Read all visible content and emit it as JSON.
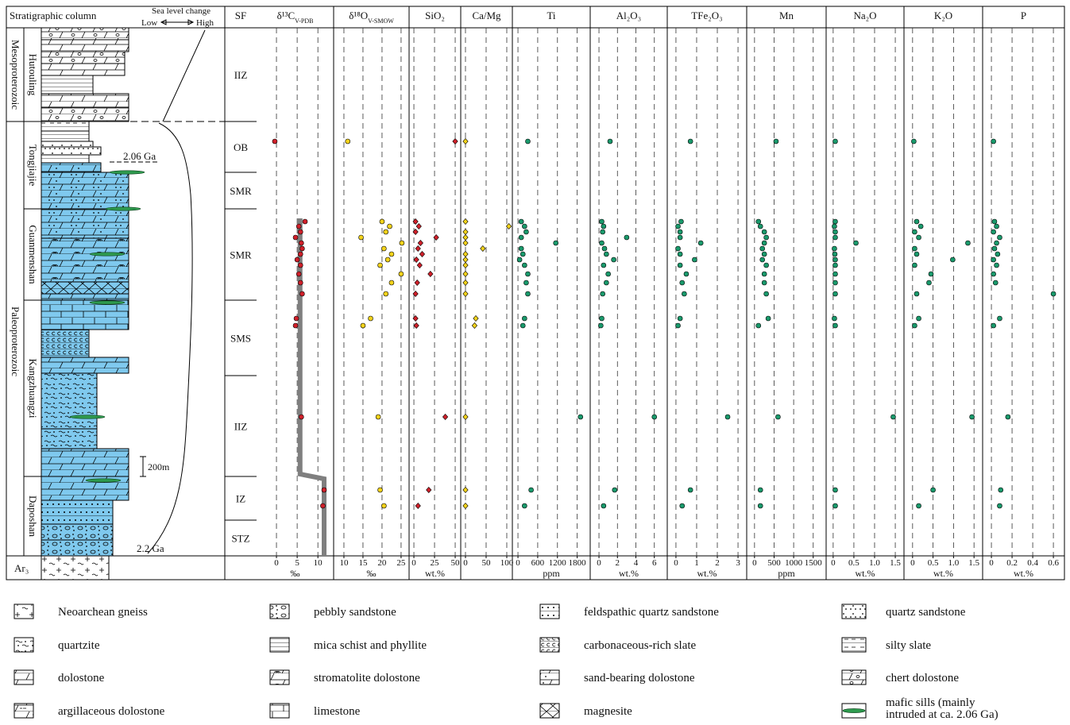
{
  "column": {
    "header": "Stratigraphic column",
    "sea_level": "Sea level change",
    "low": "Low",
    "high": "High",
    "eras": [
      "Mesoproterozoic",
      "Paleoproterozoic"
    ],
    "formations": [
      "Hutouling",
      "Tongjiajie",
      "Guanmenshan",
      "Kangzhuangzi",
      "Daposhan"
    ],
    "ages": [
      "2.06 Ga",
      "2.2 Ga"
    ],
    "scale": "200m",
    "basement": "Ar₃"
  },
  "sf": {
    "header": "SF",
    "units": [
      "IIZ",
      "OB",
      "SMR",
      "SMR",
      "SMS",
      "IIZ",
      "IZ",
      "STZ"
    ]
  },
  "chart_data": [
    {
      "type": "scatter",
      "title": "δ¹³C",
      "title_sub": "V-PDB",
      "x_label": "‰",
      "xlim": [
        -4.8,
        13.8
      ],
      "xticks": [
        0,
        5,
        10
      ],
      "ylim": [
        0,
        5320
      ],
      "y": [
        4176,
        3368,
        3320,
        3264,
        3208,
        3152,
        3096,
        3040,
        2984,
        2928,
        2840,
        2752,
        2640,
        2392,
        2320,
        1400,
        664,
        504
      ],
      "series": [
        {
          "color": "#d0202a",
          "marker": "circle",
          "values": [
            -0.4,
            6.9,
            5.4,
            5.8,
            4.6,
            6,
            6.2,
            5.8,
            5,
            5.8,
            5.4,
            5.8,
            6.2,
            4.8,
            4.6,
            6,
            11.5,
            11.2
          ]
        }
      ],
      "trend": {
        "color": "#7f7f7f",
        "values": [
          5.7,
          5.7,
          11.5,
          11.5
        ],
        "y": [
          3400,
          824,
          776,
          0
        ]
      }
    },
    {
      "type": "scatter",
      "title": "δ¹⁸O",
      "title_sub": "V-SMOW",
      "x_label": "‰",
      "xlim": [
        7.3,
        27.1
      ],
      "xticks": [
        10,
        15,
        20,
        25
      ],
      "ylim": [
        0,
        5320
      ],
      "y": [
        4176,
        3368,
        3320,
        3264,
        3208,
        3152,
        3096,
        3040,
        2984,
        2928,
        2840,
        2752,
        2640,
        2392,
        2320,
        1400,
        664,
        504
      ],
      "series": [
        {
          "color": "#f2d21b",
          "marker": "circle",
          "values": [
            11,
            20,
            22,
            21,
            14.5,
            25.2,
            20.5,
            22.5,
            21.5,
            19.5,
            25,
            22.5,
            21,
            17,
            15,
            19,
            19.5,
            20.5
          ]
        }
      ]
    },
    {
      "type": "scatter",
      "title": "SiO₂",
      "x_label": "wt.%",
      "xlim": [
        -5.8,
        56.7
      ],
      "xticks": [
        0,
        25,
        50
      ],
      "ylim": [
        0,
        5320
      ],
      "y": [
        4176,
        3368,
        3320,
        3264,
        3208,
        3152,
        3096,
        3040,
        2984,
        2928,
        2840,
        2752,
        2640,
        2392,
        2320,
        1400,
        664,
        504
      ],
      "series": [
        {
          "color": "#d0202a",
          "marker": "diamond",
          "values": [
            50,
            2,
            6,
            2,
            27,
            8,
            5,
            10,
            3,
            7,
            20,
            4,
            2,
            2,
            3,
            38,
            18,
            5
          ]
        }
      ]
    },
    {
      "type": "scatter",
      "title": "Ca/Mg",
      "xlim": [
        -11.5,
        113.5
      ],
      "xticks": [
        0,
        50,
        100
      ],
      "ylim": [
        0,
        5320
      ],
      "y": [
        4176,
        3368,
        3320,
        3264,
        3208,
        3152,
        3096,
        3040,
        2984,
        2928,
        2840,
        2752,
        2640,
        2392,
        2320,
        1400,
        664,
        504
      ],
      "series": [
        {
          "color": "#f2d21b",
          "marker": "diamond",
          "values": [
            0,
            0,
            105,
            0,
            0,
            0,
            42,
            0,
            0,
            0,
            0,
            0,
            0,
            25,
            22,
            0,
            0,
            0
          ]
        }
      ]
    },
    {
      "type": "scatter",
      "title": "Ti",
      "x_label": "ppm",
      "xlim": [
        -170,
        2195
      ],
      "xticks": [
        0,
        600,
        1200,
        1800
      ],
      "ylim": [
        0,
        5320
      ],
      "y": [
        4176,
        3368,
        3320,
        3264,
        3208,
        3152,
        3096,
        3040,
        2984,
        2928,
        2840,
        2752,
        2640,
        2392,
        2320,
        1400,
        664,
        504
      ],
      "series": [
        {
          "color": "#1a9a6c",
          "marker": "circle",
          "values": [
            300,
            100,
            200,
            250,
            100,
            1150,
            100,
            150,
            50,
            200,
            300,
            250,
            300,
            200,
            150,
            1900,
            400,
            200
          ]
        }
      ]
    },
    {
      "type": "scatter",
      "title": "Al₂O₃",
      "x_label": "wt.%",
      "xlim": [
        -0.95,
        7.4
      ],
      "xticks": [
        0,
        2,
        4,
        6
      ],
      "ylim": [
        0,
        5320
      ],
      "y": [
        4176,
        3368,
        3320,
        3264,
        3208,
        3152,
        3096,
        3040,
        2984,
        2928,
        2840,
        2752,
        2640,
        2392,
        2320,
        1400,
        664,
        504
      ],
      "series": [
        {
          "color": "#1a9a6c",
          "marker": "circle",
          "values": [
            1.2,
            0.3,
            0.5,
            0.4,
            3,
            0.3,
            0.6,
            0.8,
            1.6,
            0.5,
            1,
            0.8,
            0.4,
            0.3,
            0.2,
            6,
            1.7,
            0.5
          ]
        }
      ]
    },
    {
      "type": "scatter",
      "title": "TFe₂O₃",
      "x_label": "wt.%",
      "xlim": [
        -0.42,
        3.42
      ],
      "xticks": [
        0,
        1,
        2,
        3
      ],
      "ylim": [
        0,
        5320
      ],
      "y": [
        4176,
        3368,
        3320,
        3264,
        3208,
        3152,
        3096,
        3040,
        2984,
        2928,
        2840,
        2752,
        2640,
        2392,
        2320,
        1400,
        664,
        504
      ],
      "series": [
        {
          "color": "#1a9a6c",
          "marker": "circle",
          "values": [
            0.7,
            0.25,
            0.1,
            0.2,
            0.2,
            1.2,
            0.1,
            0.2,
            0.9,
            0.2,
            0.5,
            0.3,
            0.4,
            0.2,
            0.1,
            2.5,
            0.7,
            0.3
          ]
        }
      ]
    },
    {
      "type": "scatter",
      "title": "Mn",
      "x_label": "ppm",
      "xlim": [
        -200,
        1830
      ],
      "xticks": [
        0,
        500,
        1000,
        1500
      ],
      "ylim": [
        0,
        5320
      ],
      "y": [
        4176,
        3368,
        3320,
        3264,
        3208,
        3152,
        3096,
        3040,
        2984,
        2928,
        2840,
        2752,
        2640,
        2392,
        2320,
        1400,
        664,
        504
      ],
      "series": [
        {
          "color": "#1a9a6c",
          "marker": "circle",
          "values": [
            550,
            100,
            150,
            250,
            300,
            250,
            200,
            250,
            200,
            300,
            250,
            250,
            300,
            350,
            100,
            600,
            150,
            150
          ]
        }
      ]
    },
    {
      "type": "scatter",
      "title": "Na₂O",
      "x_label": "wt.%",
      "xlim": [
        -0.17,
        1.71
      ],
      "xticks": [
        0,
        0.5,
        {
          "value": 1,
          "label": "1.0"
        },
        1.5
      ],
      "ylim": [
        0,
        5320
      ],
      "y": [
        4176,
        3368,
        3320,
        3264,
        3208,
        3152,
        3096,
        3040,
        2984,
        2928,
        2840,
        2752,
        2640,
        2392,
        2320,
        1400,
        664,
        504
      ],
      "series": [
        {
          "color": "#1a9a6c",
          "marker": "circle",
          "values": [
            0.05,
            0.05,
            0.03,
            0.05,
            0.05,
            0.55,
            0.03,
            0.04,
            0.05,
            0.05,
            0.05,
            0.05,
            0.05,
            0.03,
            0.05,
            1.45,
            0.05,
            0.05
          ]
        }
      ]
    },
    {
      "type": "scatter",
      "title": "K₂O",
      "x_label": "wt.%",
      "xlim": [
        -0.21,
        1.71
      ],
      "xticks": [
        0,
        0.5,
        {
          "value": 1,
          "label": "1.0"
        },
        1.5
      ],
      "ylim": [
        0,
        5320
      ],
      "y": [
        4176,
        3368,
        3320,
        3264,
        3208,
        3152,
        3096,
        3040,
        2984,
        2928,
        2840,
        2752,
        2640,
        2392,
        2320,
        1400,
        664,
        504
      ],
      "series": [
        {
          "color": "#1a9a6c",
          "marker": "circle",
          "values": [
            0.03,
            0.1,
            0.2,
            0.05,
            0.15,
            1.35,
            0.05,
            0.1,
            0.98,
            0.05,
            0.45,
            0.4,
            0.1,
            0.15,
            0.05,
            1.45,
            0.5,
            0.15
          ]
        }
      ]
    },
    {
      "type": "scatter",
      "title": "P",
      "x_label": "wt.%",
      "xlim": [
        -0.085,
        0.707
      ],
      "xticks": [
        0,
        0.2,
        0.4,
        0.6
      ],
      "ylim": [
        0,
        5320
      ],
      "y": [
        4176,
        3368,
        3320,
        3264,
        3208,
        3152,
        3096,
        3040,
        2984,
        2928,
        2840,
        2752,
        2640,
        2392,
        2320,
        1400,
        664,
        504
      ],
      "series": [
        {
          "color": "#1a9a6c",
          "marker": "circle",
          "values": [
            0.02,
            0.03,
            0.05,
            0.02,
            0.08,
            0.05,
            0.03,
            0.06,
            0.02,
            0.05,
            0.02,
            0.04,
            0.6,
            0.08,
            0.02,
            0.16,
            0.09,
            0.08
          ]
        }
      ]
    }
  ],
  "legend": [
    [
      "Neoarchean gneiss"
    ],
    [
      "pebbly sandstone"
    ],
    [
      "feldspathic quartz sandstone"
    ],
    [
      "quartz sandstone"
    ],
    [
      "quartzite"
    ],
    [
      "mica schist and phyllite"
    ],
    [
      "carbonaceous-rich slate"
    ],
    [
      "silty slate"
    ],
    [
      "dolostone"
    ],
    [
      "stromatolite dolostone"
    ],
    [
      "sand-bearing dolostone"
    ],
    [
      "chert dolostone"
    ],
    [
      "argillaceous dolostone"
    ],
    [
      "limestone"
    ],
    [
      "magnesite"
    ],
    [
      "mafic sills (mainly",
      "intruded at ca. 2.06 Ga)"
    ]
  ]
}
